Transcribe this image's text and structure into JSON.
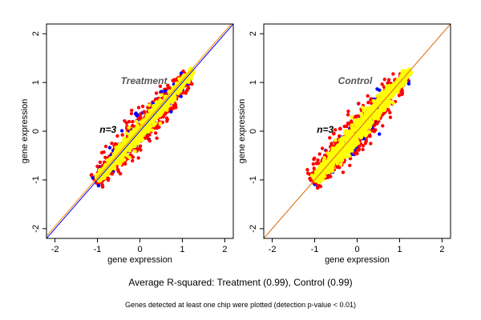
{
  "chart_data": [
    {
      "type": "scatter",
      "title": "Treatment",
      "annotation": "n=3",
      "xlabel": "gene expression",
      "ylabel": "gene expression",
      "xlim": [
        -2.2,
        2.2
      ],
      "ylim": [
        -2.2,
        2.2
      ],
      "xticks": [
        "-2",
        "-1",
        "0",
        "1",
        "2"
      ],
      "yticks": [
        "-2",
        "-1",
        "0",
        "1",
        "2"
      ],
      "grid": false,
      "series": [
        {
          "color": "#0000ff",
          "x": [
            -0.85,
            -0.6,
            0.45,
            -0.25,
            0.3
          ],
          "y": [
            -0.95,
            -0.45,
            0.35,
            -0.4,
            0.15
          ]
        },
        {
          "color": "#ff0000",
          "x": [
            -0.5,
            -0.2,
            0.1,
            0.5,
            -0.7,
            0.8,
            -0.9,
            0.2,
            -0.4,
            0.35
          ],
          "y": [
            -0.55,
            -0.05,
            0.15,
            0.6,
            -0.75,
            0.85,
            -0.9,
            0.05,
            -0.55,
            0.25
          ]
        },
        {
          "color": "#ffff00",
          "x": [
            -1.0,
            -0.8,
            -0.6,
            -0.4,
            -0.2,
            0.0,
            0.2,
            0.4,
            0.6,
            0.8,
            1.0,
            1.2
          ],
          "y": [
            -1.0,
            -0.8,
            -0.6,
            -0.4,
            -0.2,
            0.0,
            0.2,
            0.4,
            0.6,
            0.8,
            1.0,
            1.2
          ]
        }
      ],
      "reference_lines": [
        {
          "color": "#0000ff",
          "slope": 1.0,
          "intercept": 0.0
        },
        {
          "color": "#ff8c00",
          "slope": 1.0,
          "intercept": 0.05
        }
      ]
    },
    {
      "type": "scatter",
      "title": "Control",
      "annotation": "n=3",
      "xlabel": "gene expression",
      "ylabel": "gene expression",
      "xlim": [
        -2.2,
        2.2
      ],
      "ylim": [
        -2.2,
        2.2
      ],
      "xticks": [
        "-2",
        "-1",
        "0",
        "1",
        "2"
      ],
      "yticks": [
        "-2",
        "-1",
        "0",
        "1",
        "2"
      ],
      "grid": false,
      "series": [
        {
          "color": "#0000ff",
          "x": [
            -0.55,
            -0.4,
            0.35,
            0.05,
            0.35,
            -0.8,
            0.5,
            -0.2,
            0.15,
            0.55,
            0.25
          ],
          "y": [
            -0.55,
            -0.6,
            0.15,
            0.25,
            0.25,
            -0.85,
            0.5,
            -0.35,
            -0.15,
            0.4,
            0.1
          ]
        },
        {
          "color": "#ff0000",
          "x": [
            -0.55,
            -0.4,
            -0.25,
            0.0,
            0.25,
            -0.75,
            0.7,
            -0.3,
            -0.35,
            0.1,
            0.4,
            0.3
          ],
          "y": [
            -0.05,
            0.05,
            0.1,
            0.2,
            0.25,
            -0.5,
            0.5,
            -0.6,
            -0.15,
            0.45,
            0.35,
            -0.1
          ]
        },
        {
          "color": "#ffff00",
          "x": [
            -1.0,
            -0.8,
            -0.6,
            -0.4,
            -0.2,
            0.0,
            0.2,
            0.4,
            0.6,
            0.8,
            1.0,
            1.2
          ],
          "y": [
            -1.0,
            -0.8,
            -0.6,
            -0.4,
            -0.2,
            0.0,
            0.2,
            0.4,
            0.6,
            0.8,
            1.0,
            1.2
          ]
        }
      ],
      "reference_lines": [
        {
          "color": "#0000ff",
          "slope": 1.0,
          "intercept": 0.0
        },
        {
          "color": "#ff8c00",
          "slope": 1.0,
          "intercept": 0.0
        }
      ]
    }
  ],
  "footer": {
    "main": "Average R-squared: Treatment (0.99), Control (0.99)",
    "note": "Genes detected at least one chip were plotted (detection p-value < 0.01)"
  }
}
